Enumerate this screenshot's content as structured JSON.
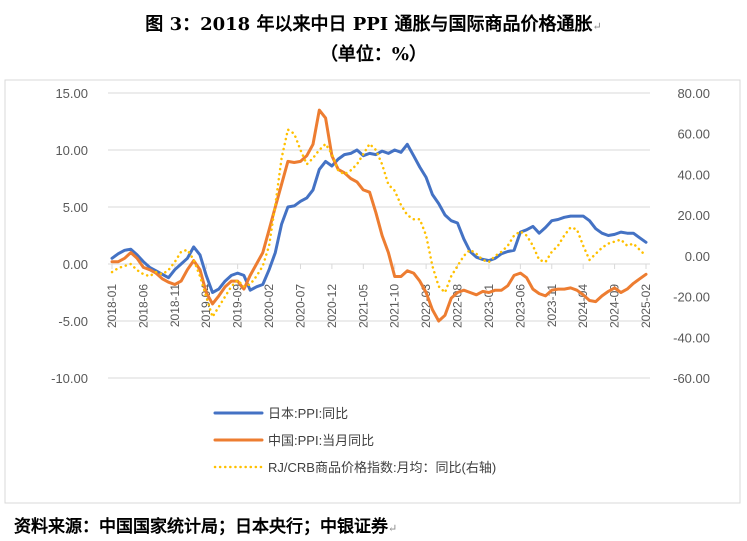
{
  "title": "图 3：2018 年以来中日 PPI 通胀与国际商品价格通胀",
  "subtitle": "（单位：%）",
  "return_mark": "↵",
  "source": "资料来源：中国国家统计局；日本央行；中银证券",
  "chart_data": {
    "type": "line",
    "x_start": "2018-01",
    "x_end": "2025-02",
    "x_tick_labels": [
      "2018-01",
      "2018-06",
      "2018-11",
      "2019-04",
      "2019-09",
      "2020-02",
      "2020-07",
      "2020-12",
      "2021-05",
      "2021-10",
      "2022-03",
      "2022-08",
      "2023-01",
      "2023-06",
      "2023-11",
      "2024-04",
      "2024-09",
      "2025-02"
    ],
    "y_left": {
      "range": [
        -10,
        15
      ],
      "ticks": [
        "15.00",
        "10.00",
        "5.00",
        "0.00",
        "-5.00",
        "-10.00"
      ]
    },
    "y_right": {
      "range": [
        -60,
        80
      ],
      "ticks": [
        "80.00",
        "60.00",
        "40.00",
        "20.00",
        "0.00",
        "-20.00",
        "-40.00",
        "-60.00"
      ]
    },
    "grid": true,
    "legend_position": "bottom",
    "series": [
      {
        "name": "日本:PPI:同比",
        "axis": "left",
        "color": "#4472C4",
        "style": "solid",
        "values": [
          0.5,
          0.9,
          1.2,
          1.3,
          0.8,
          0.2,
          -0.3,
          -0.6,
          -0.9,
          -1.2,
          -0.5,
          0.0,
          0.5,
          1.5,
          0.8,
          -1.0,
          -2.5,
          -2.2,
          -1.5,
          -1.0,
          -0.8,
          -1.0,
          -2.3,
          -2.0,
          -1.8,
          -0.5,
          1.0,
          3.5,
          5.0,
          5.1,
          5.5,
          5.8,
          6.5,
          8.3,
          9.0,
          8.6,
          9.2,
          9.6,
          9.7,
          10.0,
          9.5,
          9.7,
          9.6,
          9.9,
          9.7,
          10.0,
          9.8,
          10.5,
          9.5,
          8.5,
          7.6,
          6.1,
          5.3,
          4.3,
          3.8,
          3.6,
          2.2,
          1.1,
          0.6,
          0.4,
          0.3,
          0.5,
          0.9,
          1.1,
          1.2,
          2.8,
          3.0,
          3.3,
          2.7,
          3.2,
          3.8,
          3.9,
          4.1,
          4.2,
          4.2,
          4.2,
          3.8,
          3.1,
          2.7,
          2.5,
          2.6,
          2.8,
          2.7,
          2.7,
          2.3,
          1.9
        ]
      },
      {
        "name": "中国:PPI:当月同比",
        "axis": "left",
        "color": "#ED7D31",
        "style": "solid",
        "values": [
          0.2,
          0.2,
          0.5,
          1.0,
          0.5,
          -0.3,
          -0.5,
          -0.8,
          -1.3,
          -1.6,
          -1.8,
          -1.5,
          -0.5,
          0.3,
          -0.5,
          -2.5,
          -3.5,
          -2.8,
          -2.0,
          -1.5,
          -1.5,
          -2.2,
          -1.0,
          0.0,
          1.0,
          3.0,
          5.0,
          7.0,
          9.0,
          8.9,
          9.0,
          9.5,
          10.5,
          13.5,
          12.8,
          9.5,
          8.3,
          8.0,
          7.5,
          7.2,
          6.5,
          6.3,
          4.5,
          2.5,
          1.0,
          -1.1,
          -1.1,
          -0.6,
          -0.8,
          -1.5,
          -2.5,
          -4.0,
          -5.0,
          -4.5,
          -3.0,
          -2.5,
          -2.3,
          -2.5,
          -2.7,
          -2.4,
          -2.5,
          -2.3,
          -2.3,
          -1.9,
          -1.0,
          -0.8,
          -1.2,
          -2.2,
          -2.6,
          -2.8,
          -2.3,
          -2.2,
          -2.2,
          -2.1,
          -2.3,
          -2.7,
          -3.2,
          -3.3,
          -2.8,
          -2.4,
          -2.1,
          -2.5,
          -2.2,
          -1.7,
          -1.3,
          -0.9
        ]
      },
      {
        "name": "RJ/CRB商品价格指数:月均：同比(右轴)",
        "axis": "right",
        "color": "#FFC000",
        "style": "dotted",
        "values": [
          -8,
          -6,
          -5,
          -4,
          -7,
          -9,
          -10,
          -8,
          -9,
          -7,
          -3,
          2,
          3,
          -2,
          -10,
          -20,
          -30,
          -25,
          -20,
          -15,
          -12,
          -15,
          -14,
          -10,
          -5,
          5,
          25,
          48,
          62,
          60,
          52,
          45,
          48,
          52,
          55,
          50,
          42,
          40,
          42,
          45,
          50,
          55,
          52,
          45,
          35,
          32,
          25,
          20,
          18,
          18,
          10,
          -5,
          -15,
          -18,
          -10,
          -5,
          0,
          3,
          1,
          -2,
          -3,
          0,
          2,
          5,
          10,
          12,
          10,
          5,
          -2,
          -3,
          2,
          5,
          10,
          14,
          13,
          5,
          -2,
          1,
          4,
          6,
          7,
          8,
          5,
          6,
          3,
          0
        ]
      }
    ]
  }
}
